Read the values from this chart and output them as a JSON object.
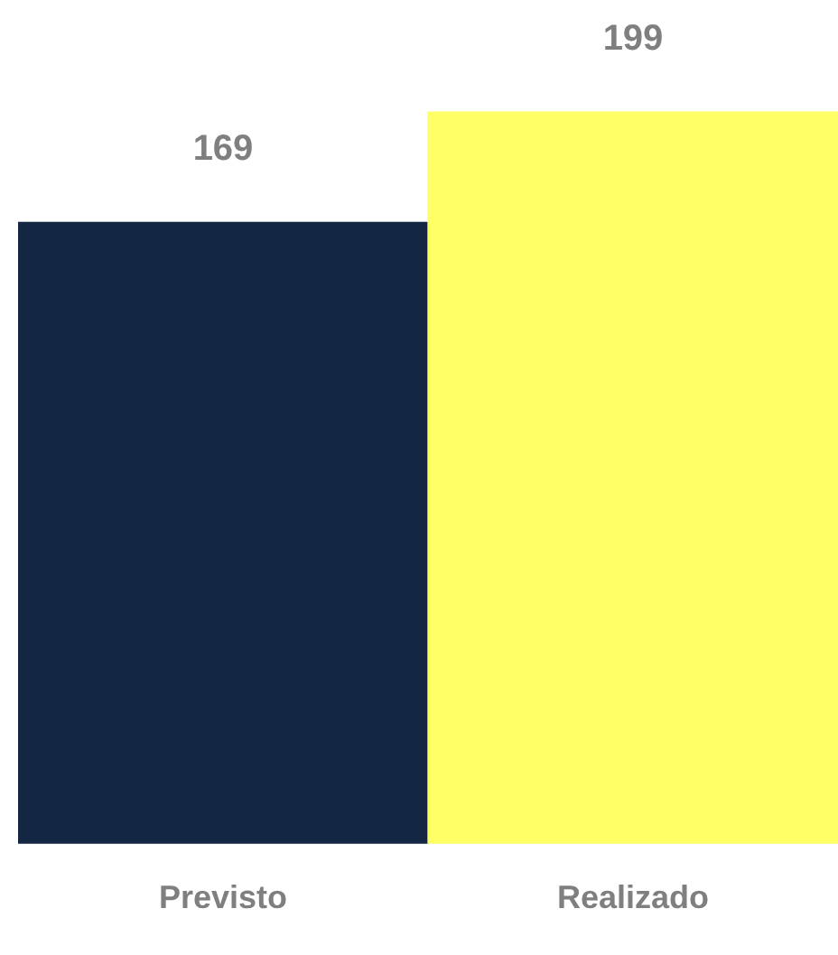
{
  "chart_data": {
    "type": "bar",
    "categories": [
      "Previsto",
      "Realizado"
    ],
    "values": [
      169,
      199
    ],
    "colors": [
      "#132743",
      "#ffff66"
    ],
    "data_labels": true,
    "grid": false,
    "legend": false
  }
}
